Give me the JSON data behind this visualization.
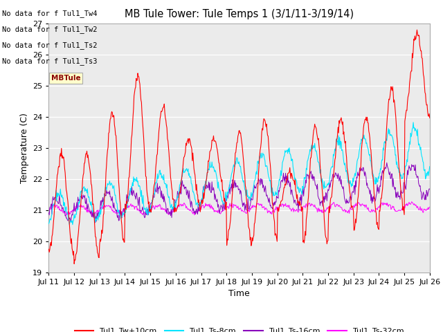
{
  "title": "MB Tule Tower: Tule Temps 1 (3/1/11-3/19/14)",
  "xlabel": "Time",
  "ylabel": "Temperature (C)",
  "xlim": [
    0,
    15
  ],
  "ylim": [
    19.0,
    27.0
  ],
  "yticks": [
    19.0,
    20.0,
    21.0,
    22.0,
    23.0,
    24.0,
    25.0,
    26.0,
    27.0
  ],
  "xtick_labels": [
    "Jul 11",
    "Jul 12",
    "Jul 13",
    "Jul 14",
    "Jul 15",
    "Jul 16",
    "Jul 17",
    "Jul 18",
    "Jul 19",
    "Jul 20",
    "Jul 21",
    "Jul 22",
    "Jul 23",
    "Jul 24",
    "Jul 25",
    "Jul 26"
  ],
  "colors": {
    "Tw": "#ff0000",
    "Ts8": "#00e5ff",
    "Ts16": "#8800bb",
    "Ts32": "#ff00ff"
  },
  "legend_labels": [
    "Tul1_Tw+10cm",
    "Tul1_Ts-8cm",
    "Tul1_Ts-16cm",
    "Tul1_Ts-32cm"
  ],
  "bg_color": "#e8e8e8",
  "plot_bg": "#ebebeb",
  "grid_color": "#ffffff",
  "annotations": [
    "No data for f Tul1_Tw4",
    "No data for f Tul1_Tw2",
    "No data for f Tul1_Ts2",
    "No data for f Tul1_Ts3"
  ],
  "figsize": [
    6.4,
    4.8
  ],
  "dpi": 100
}
